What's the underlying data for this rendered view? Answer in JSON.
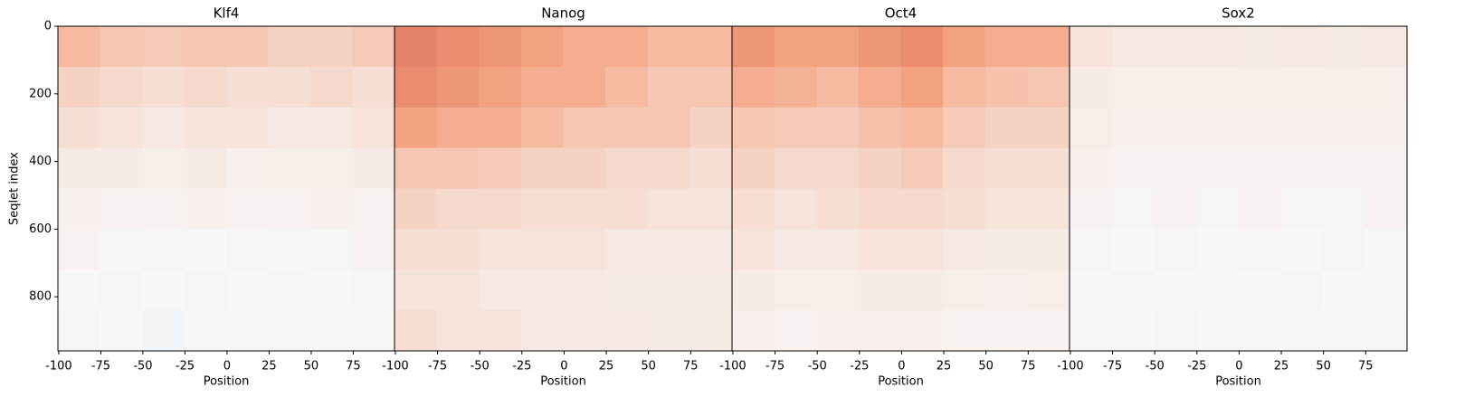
{
  "chart_data": [
    {
      "type": "heatmap",
      "title": "Klf4",
      "xlabel": "Position",
      "ylabel": "Seqlet index",
      "colormap": "RdBu_r",
      "clim": [
        -1,
        1
      ],
      "xlim": [
        -100.5,
        99.5
      ],
      "xticks": [
        -100,
        -75,
        -50,
        -25,
        0,
        25,
        50,
        75
      ],
      "ylim": [
        960,
        0
      ],
      "yticks": [
        0,
        200,
        400,
        600,
        800
      ],
      "values": [
        [
          0.25,
          0.2,
          0.18,
          0.2,
          0.2,
          0.15,
          0.15,
          0.18
        ],
        [
          0.15,
          0.12,
          0.1,
          0.12,
          0.1,
          0.1,
          0.12,
          0.1
        ],
        [
          0.1,
          0.08,
          0.06,
          0.08,
          0.08,
          0.06,
          0.06,
          0.08
        ],
        [
          0.05,
          0.05,
          0.04,
          0.05,
          0.03,
          0.04,
          0.04,
          0.05
        ],
        [
          0.03,
          0.02,
          0.02,
          0.03,
          0.02,
          0.02,
          0.03,
          0.02
        ],
        [
          0.02,
          0,
          0.01,
          0,
          0.01,
          0,
          0.01,
          0.02
        ],
        [
          0,
          -0.01,
          0,
          0.01,
          0,
          -0.01,
          0,
          0.01
        ],
        [
          -0.01,
          0,
          -0.02,
          0,
          0,
          -0.01,
          0,
          0
        ]
      ]
    },
    {
      "type": "heatmap",
      "title": "Nanog",
      "xlabel": "Position",
      "colormap": "RdBu_r",
      "clim": [
        -1,
        1
      ],
      "xlim": [
        -100.5,
        99.5
      ],
      "xticks": [
        -100,
        -75,
        -50,
        -25,
        0,
        25,
        50,
        75
      ],
      "ylim": [
        960,
        0
      ],
      "values": [
        [
          0.5,
          0.45,
          0.4,
          0.35,
          0.3,
          0.3,
          0.25,
          0.25
        ],
        [
          0.45,
          0.4,
          0.35,
          0.3,
          0.3,
          0.25,
          0.2,
          0.2
        ],
        [
          0.35,
          0.3,
          0.3,
          0.25,
          0.2,
          0.2,
          0.2,
          0.15
        ],
        [
          0.2,
          0.2,
          0.18,
          0.15,
          0.15,
          0.12,
          0.12,
          0.1
        ],
        [
          0.15,
          0.12,
          0.12,
          0.1,
          0.1,
          0.1,
          0.08,
          0.08
        ],
        [
          0.1,
          0.1,
          0.08,
          0.08,
          0.08,
          0.06,
          0.06,
          0.06
        ],
        [
          0.08,
          0.08,
          0.06,
          0.06,
          0.06,
          0.05,
          0.05,
          0.05
        ],
        [
          0.1,
          0.08,
          0.08,
          0.06,
          0.06,
          0.06,
          0.05,
          0.05
        ]
      ]
    },
    {
      "type": "heatmap",
      "title": "Oct4",
      "xlabel": "Position",
      "colormap": "RdBu_r",
      "clim": [
        -1,
        1
      ],
      "xlim": [
        -100.5,
        99.5
      ],
      "xticks": [
        -100,
        -75,
        -50,
        -25,
        0,
        25,
        50,
        75
      ],
      "ylim": [
        960,
        0
      ],
      "values": [
        [
          0.4,
          0.35,
          0.35,
          0.4,
          0.45,
          0.35,
          0.3,
          0.3
        ],
        [
          0.3,
          0.28,
          0.25,
          0.3,
          0.35,
          0.25,
          0.22,
          0.2
        ],
        [
          0.2,
          0.18,
          0.18,
          0.22,
          0.25,
          0.18,
          0.15,
          0.15
        ],
        [
          0.15,
          0.12,
          0.12,
          0.15,
          0.18,
          0.12,
          0.1,
          0.1
        ],
        [
          0.1,
          0.08,
          0.1,
          0.12,
          0.12,
          0.1,
          0.08,
          0.08
        ],
        [
          0.08,
          0.06,
          0.06,
          0.08,
          0.08,
          0.06,
          0.05,
          0.05
        ],
        [
          0.05,
          0.04,
          0.04,
          0.05,
          0.05,
          0.04,
          0.03,
          0.04
        ],
        [
          0.03,
          0.02,
          0.03,
          0.03,
          0.03,
          0.02,
          0.02,
          0.02
        ]
      ]
    },
    {
      "type": "heatmap",
      "title": "Sox2",
      "xlabel": "Position",
      "colormap": "RdBu_r",
      "clim": [
        -1,
        1
      ],
      "xlim": [
        -100.5,
        99.5
      ],
      "xticks": [
        -100,
        -75,
        -50,
        -25,
        0,
        25,
        50,
        75
      ],
      "ylim": [
        960,
        0
      ],
      "values": [
        [
          0.08,
          0.06,
          0.06,
          0.06,
          0.05,
          0.06,
          0.05,
          0.06
        ],
        [
          0.05,
          0.04,
          0.04,
          0.04,
          0.04,
          0.04,
          0.04,
          0.04
        ],
        [
          0.04,
          0.03,
          0.03,
          0.03,
          0.03,
          0.03,
          0.03,
          0.03
        ],
        [
          0.03,
          0.02,
          0.02,
          0.02,
          0.02,
          0.02,
          0.02,
          0.02
        ],
        [
          0.02,
          0.01,
          0.02,
          0.01,
          0.02,
          0.01,
          0.01,
          0.02
        ],
        [
          0.01,
          0,
          0.01,
          0,
          0.01,
          0,
          0.01,
          0
        ],
        [
          0,
          0.01,
          0,
          0,
          0,
          0.01,
          0,
          0
        ],
        [
          0,
          0,
          -0.01,
          0,
          0,
          0,
          0,
          -0.01
        ]
      ]
    }
  ]
}
